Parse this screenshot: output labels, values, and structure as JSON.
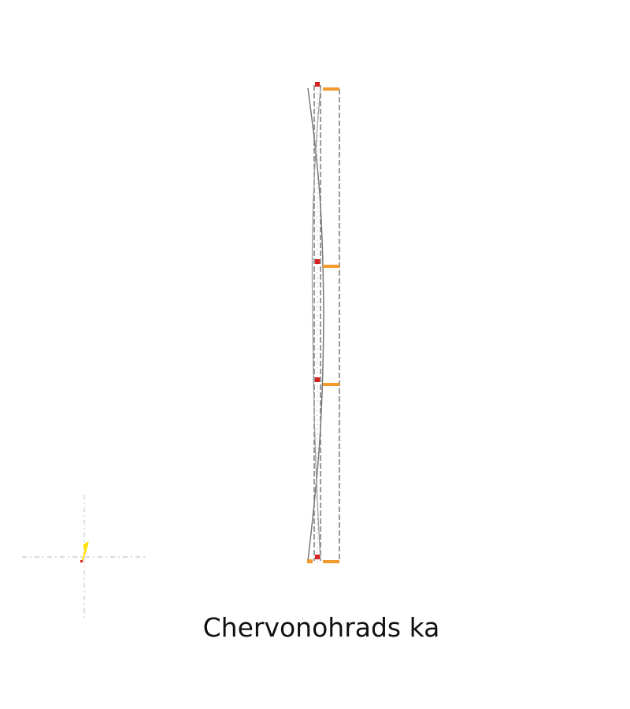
{
  "diagram": {
    "caption": "Chervonohrads ka",
    "colors": {
      "background": "#ffffff",
      "track": "#7a7a7a",
      "marker_orange": "#f39a2b",
      "marker_red": "#d92020",
      "origin_yellow": "#ffe000",
      "axis_light": "#cfcfcf"
    }
  }
}
